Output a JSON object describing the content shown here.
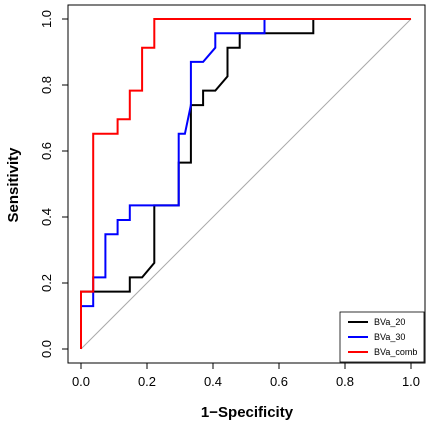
{
  "chart_data": {
    "type": "line",
    "title": "",
    "xlabel": "1−Specificity",
    "ylabel": "Sensitivity",
    "xlim": [
      0,
      1
    ],
    "ylim": [
      0,
      1
    ],
    "x_ticks": [
      "0.0",
      "0.2",
      "0.4",
      "0.6",
      "0.8",
      "1.0"
    ],
    "y_ticks": [
      "0.0",
      "0.2",
      "0.4",
      "0.6",
      "0.8",
      "1.0"
    ],
    "grid": false,
    "legend_position": "bottom-right",
    "reference_line": {
      "from": [
        0,
        0
      ],
      "to": [
        1,
        1
      ],
      "color": "#aaaaaa"
    },
    "series": [
      {
        "name": "BVa_20",
        "color": "#000000",
        "points": [
          [
            0,
            0
          ],
          [
            0,
            0.174
          ],
          [
            0.037,
            0.174
          ],
          [
            0.037,
            0.174
          ],
          [
            0.148,
            0.174
          ],
          [
            0.148,
            0.217
          ],
          [
            0.185,
            0.217
          ],
          [
            0.222,
            0.261
          ],
          [
            0.222,
            0.435
          ],
          [
            0.296,
            0.435
          ],
          [
            0.296,
            0.565
          ],
          [
            0.333,
            0.565
          ],
          [
            0.333,
            0.739
          ],
          [
            0.37,
            0.739
          ],
          [
            0.37,
            0.783
          ],
          [
            0.407,
            0.783
          ],
          [
            0.444,
            0.826
          ],
          [
            0.444,
            0.913
          ],
          [
            0.481,
            0.913
          ],
          [
            0.481,
            0.957
          ],
          [
            0.704,
            0.957
          ],
          [
            0.704,
            1
          ],
          [
            1,
            1
          ]
        ]
      },
      {
        "name": "BVa_30",
        "color": "#0000ff",
        "points": [
          [
            0,
            0
          ],
          [
            0,
            0.13
          ],
          [
            0.037,
            0.13
          ],
          [
            0.037,
            0.217
          ],
          [
            0.074,
            0.217
          ],
          [
            0.074,
            0.348
          ],
          [
            0.111,
            0.348
          ],
          [
            0.111,
            0.391
          ],
          [
            0.148,
            0.391
          ],
          [
            0.148,
            0.435
          ],
          [
            0.296,
            0.435
          ],
          [
            0.296,
            0.652
          ],
          [
            0.315,
            0.652
          ],
          [
            0.333,
            0.739
          ],
          [
            0.333,
            0.87
          ],
          [
            0.37,
            0.87
          ],
          [
            0.407,
            0.913
          ],
          [
            0.407,
            0.957
          ],
          [
            0.556,
            0.957
          ],
          [
            0.556,
            1
          ],
          [
            1,
            1
          ]
        ]
      },
      {
        "name": "BVa_comb",
        "color": "#ff0000",
        "points": [
          [
            0,
            0
          ],
          [
            0,
            0.174
          ],
          [
            0.037,
            0.174
          ],
          [
            0.037,
            0.652
          ],
          [
            0.111,
            0.652
          ],
          [
            0.111,
            0.696
          ],
          [
            0.148,
            0.696
          ],
          [
            0.148,
            0.783
          ],
          [
            0.185,
            0.783
          ],
          [
            0.185,
            0.913
          ],
          [
            0.222,
            0.913
          ],
          [
            0.222,
            1
          ],
          [
            1,
            1
          ]
        ]
      }
    ]
  }
}
